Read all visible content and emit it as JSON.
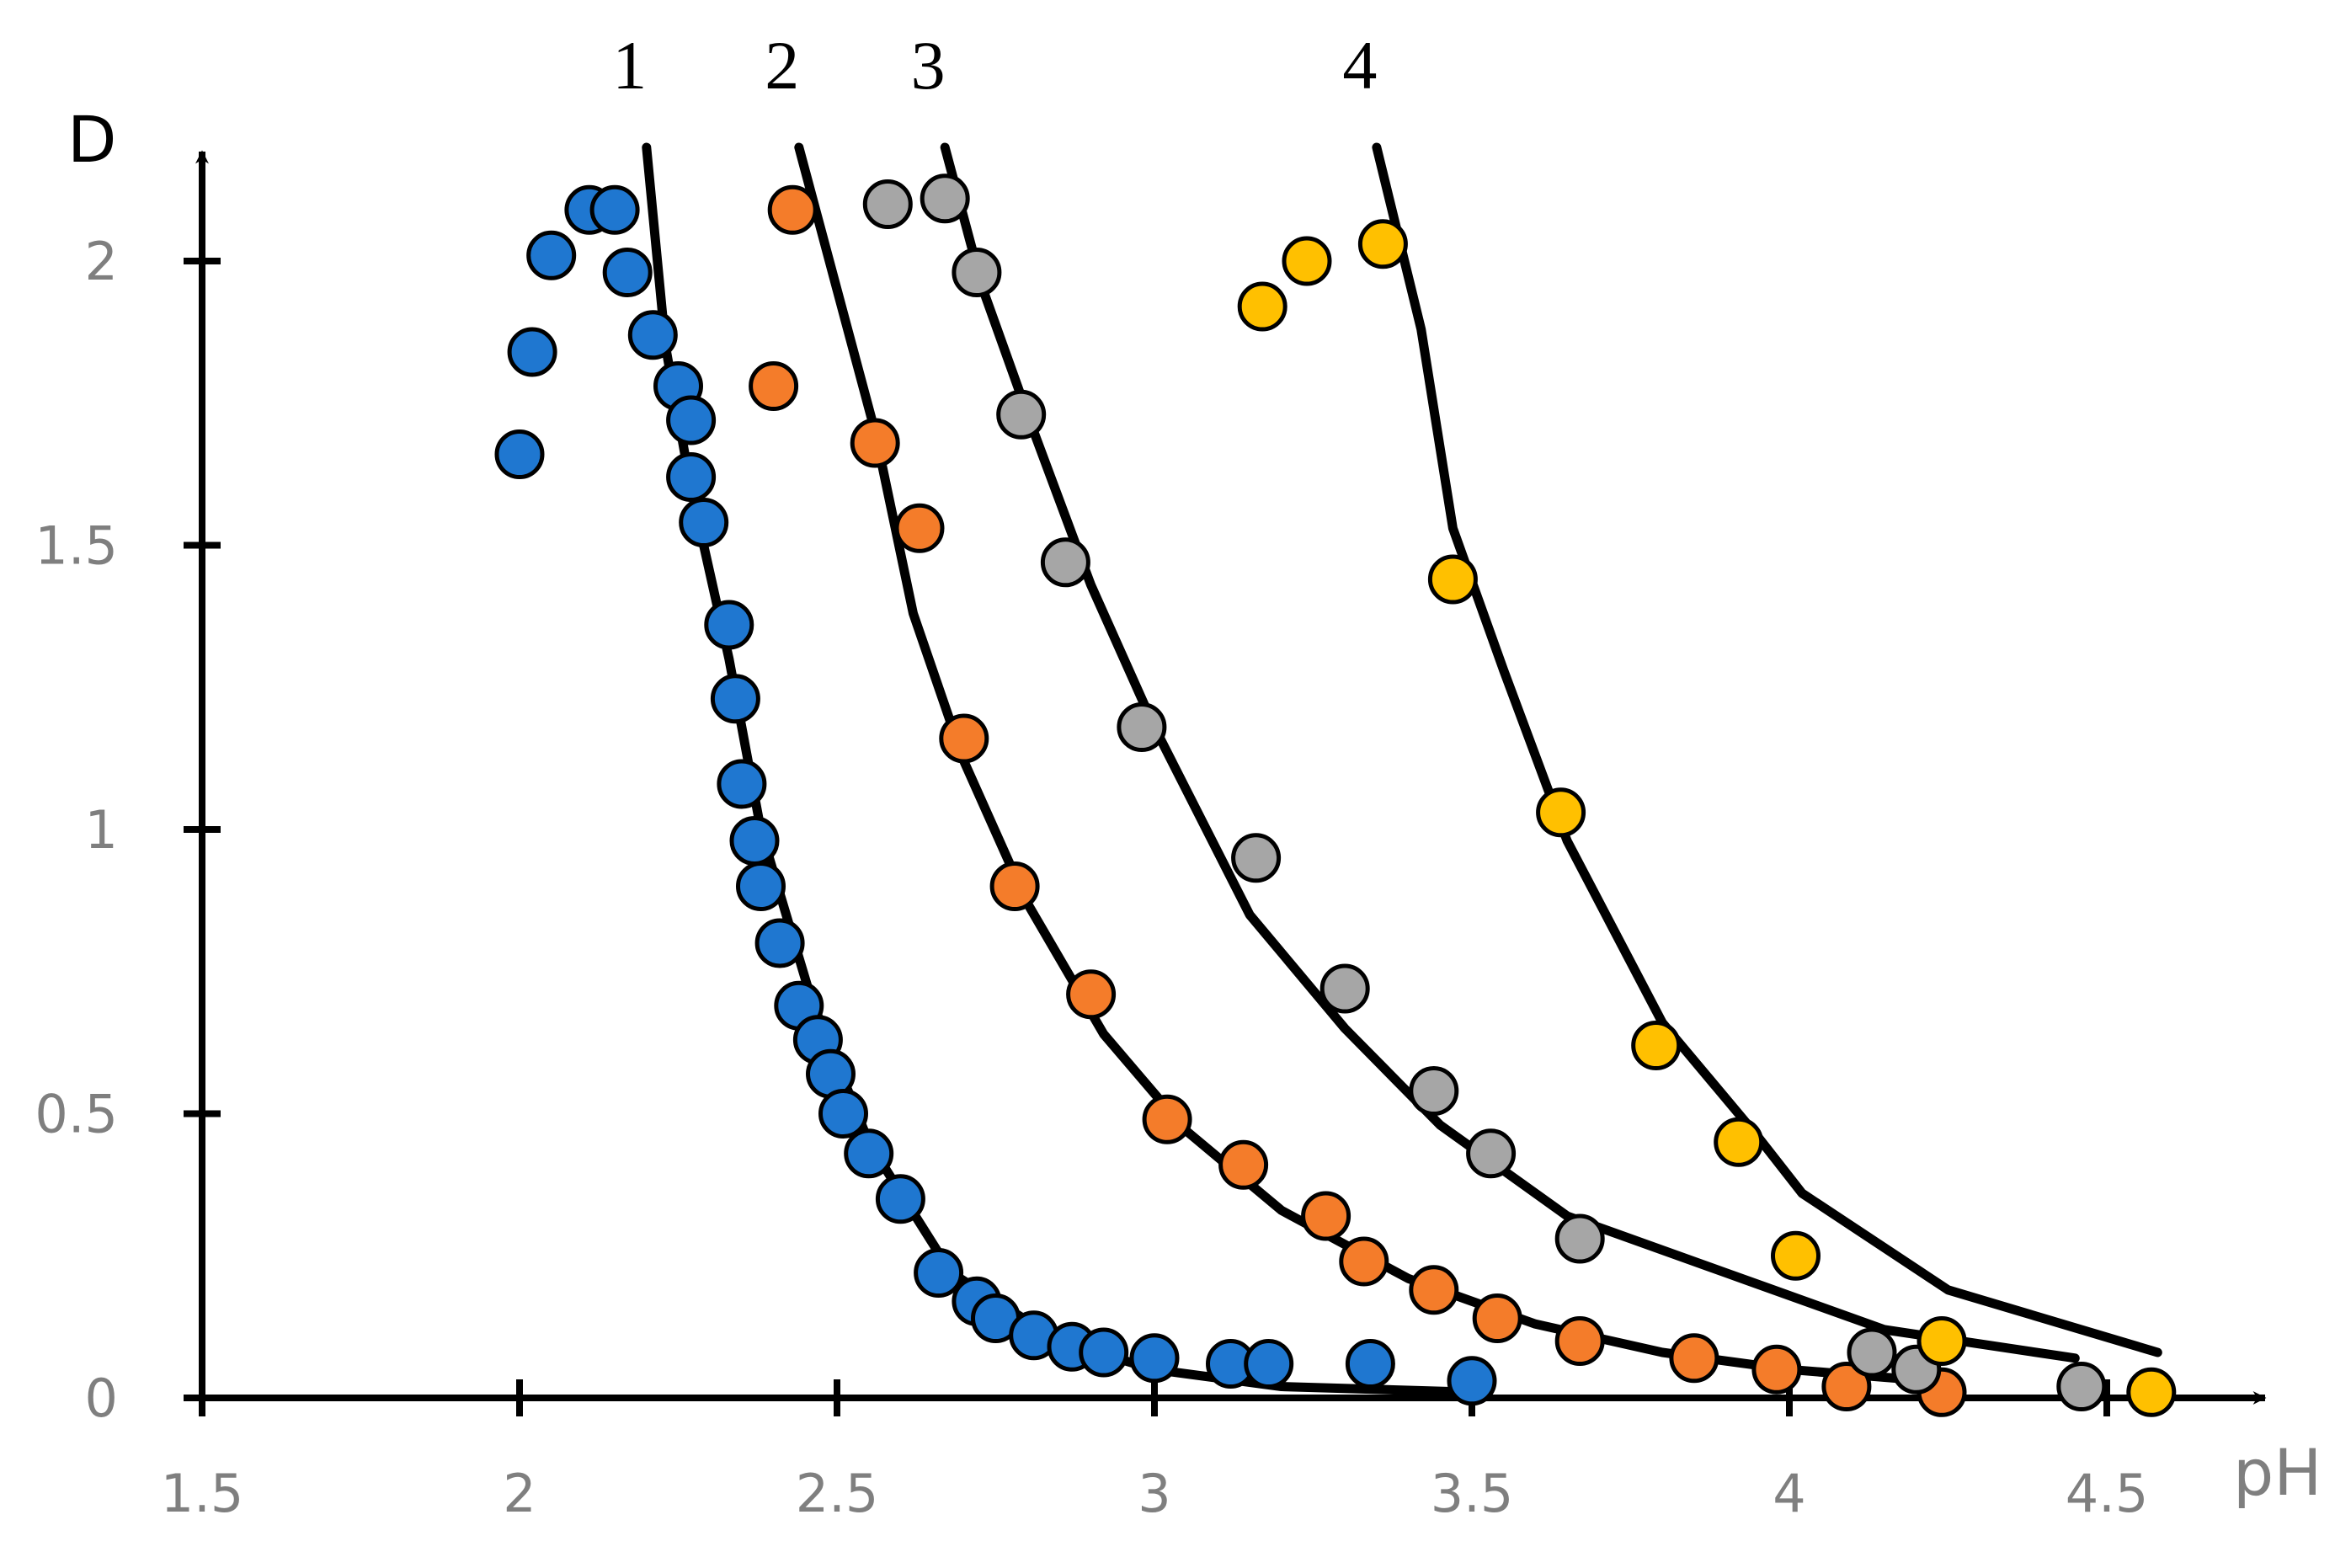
{
  "chart_data": {
    "type": "scatter",
    "xlabel": "pH",
    "ylabel": "D",
    "xlim": [
      1.5,
      4.72
    ],
    "ylim": [
      0,
      2.2
    ],
    "x_ticks": [
      "1.5",
      "2",
      "2.5",
      "3",
      "3.5",
      "4",
      "4.5"
    ],
    "y_ticks": [
      "0",
      "0.5",
      "1",
      "1.5",
      "2"
    ],
    "grid": false,
    "series": [
      {
        "name": "1",
        "color": "#1f77d0",
        "points": [
          [
            2.0,
            1.66
          ],
          [
            2.02,
            1.84
          ],
          [
            2.05,
            2.01
          ],
          [
            2.11,
            2.09
          ],
          [
            2.15,
            2.09
          ],
          [
            2.17,
            1.98
          ],
          [
            2.21,
            1.87
          ],
          [
            2.25,
            1.78
          ],
          [
            2.27,
            1.72
          ],
          [
            2.27,
            1.62
          ],
          [
            2.29,
            1.54
          ],
          [
            2.33,
            1.36
          ],
          [
            2.34,
            1.23
          ],
          [
            2.35,
            1.08
          ],
          [
            2.37,
            0.98
          ],
          [
            2.38,
            0.9
          ],
          [
            2.41,
            0.8
          ],
          [
            2.44,
            0.69
          ],
          [
            2.47,
            0.63
          ],
          [
            2.49,
            0.57
          ],
          [
            2.51,
            0.5
          ],
          [
            2.55,
            0.43
          ],
          [
            2.6,
            0.35
          ],
          [
            2.66,
            0.22
          ],
          [
            2.72,
            0.17
          ],
          [
            2.75,
            0.14
          ],
          [
            2.81,
            0.11
          ],
          [
            2.87,
            0.09
          ],
          [
            2.92,
            0.08
          ],
          [
            3.0,
            0.07
          ],
          [
            3.12,
            0.06
          ],
          [
            3.18,
            0.06
          ],
          [
            3.34,
            0.06
          ],
          [
            3.5,
            0.03
          ]
        ],
        "curve": [
          [
            2.2,
            2.2
          ],
          [
            2.23,
            1.85
          ],
          [
            2.27,
            1.6
          ],
          [
            2.33,
            1.3
          ],
          [
            2.38,
            1.0
          ],
          [
            2.46,
            0.7
          ],
          [
            2.55,
            0.45
          ],
          [
            2.68,
            0.22
          ],
          [
            2.85,
            0.1
          ],
          [
            3.0,
            0.05
          ],
          [
            3.2,
            0.02
          ],
          [
            3.5,
            0.01
          ]
        ]
      },
      {
        "name": "2",
        "color": "#f47c2a",
        "points": [
          [
            2.43,
            2.09
          ],
          [
            2.4,
            1.78
          ],
          [
            2.56,
            1.68
          ],
          [
            2.63,
            1.53
          ],
          [
            2.7,
            1.16
          ],
          [
            2.78,
            0.9
          ],
          [
            2.9,
            0.71
          ],
          [
            3.02,
            0.49
          ],
          [
            3.14,
            0.41
          ],
          [
            3.27,
            0.32
          ],
          [
            3.33,
            0.24
          ],
          [
            3.44,
            0.19
          ],
          [
            3.54,
            0.14
          ],
          [
            3.67,
            0.1
          ],
          [
            3.85,
            0.07
          ],
          [
            3.98,
            0.05
          ],
          [
            4.09,
            0.02
          ],
          [
            4.24,
            0.01
          ]
        ],
        "curve": [
          [
            2.44,
            2.2
          ],
          [
            2.5,
            1.95
          ],
          [
            2.56,
            1.7
          ],
          [
            2.62,
            1.38
          ],
          [
            2.7,
            1.12
          ],
          [
            2.8,
            0.87
          ],
          [
            2.92,
            0.64
          ],
          [
            3.05,
            0.47
          ],
          [
            3.2,
            0.33
          ],
          [
            3.4,
            0.21
          ],
          [
            3.6,
            0.13
          ],
          [
            3.8,
            0.08
          ],
          [
            4.0,
            0.05
          ],
          [
            4.22,
            0.03
          ]
        ]
      },
      {
        "name": "3",
        "color": "#a6a6a6",
        "points": [
          [
            2.58,
            2.1
          ],
          [
            2.67,
            2.11
          ],
          [
            2.72,
            1.98
          ],
          [
            2.79,
            1.73
          ],
          [
            2.86,
            1.47
          ],
          [
            2.98,
            1.18
          ],
          [
            3.16,
            0.95
          ],
          [
            3.3,
            0.72
          ],
          [
            3.44,
            0.54
          ],
          [
            3.53,
            0.43
          ],
          [
            3.67,
            0.28
          ],
          [
            4.13,
            0.08
          ],
          [
            4.2,
            0.05
          ],
          [
            4.46,
            0.02
          ]
        ],
        "curve": [
          [
            2.67,
            2.2
          ],
          [
            2.73,
            1.95
          ],
          [
            2.81,
            1.7
          ],
          [
            2.9,
            1.43
          ],
          [
            3.0,
            1.18
          ],
          [
            3.15,
            0.85
          ],
          [
            3.3,
            0.65
          ],
          [
            3.45,
            0.48
          ],
          [
            3.65,
            0.32
          ],
          [
            3.9,
            0.22
          ],
          [
            4.15,
            0.12
          ],
          [
            4.45,
            0.07
          ]
        ]
      },
      {
        "name": "4",
        "color": "#ffc000",
        "points": [
          [
            3.17,
            1.92
          ],
          [
            3.24,
            2.0
          ],
          [
            3.36,
            2.03
          ],
          [
            3.47,
            1.44
          ],
          [
            3.64,
            1.03
          ],
          [
            3.79,
            0.62
          ],
          [
            3.92,
            0.45
          ],
          [
            4.01,
            0.25
          ],
          [
            4.24,
            0.1
          ],
          [
            4.57,
            0.01
          ]
        ],
        "curve": [
          [
            3.35,
            2.2
          ],
          [
            3.42,
            1.88
          ],
          [
            3.47,
            1.53
          ],
          [
            3.55,
            1.28
          ],
          [
            3.65,
            0.98
          ],
          [
            3.8,
            0.66
          ],
          [
            3.95,
            0.46
          ],
          [
            4.02,
            0.36
          ],
          [
            4.25,
            0.19
          ],
          [
            4.58,
            0.08
          ]
        ]
      }
    ]
  }
}
